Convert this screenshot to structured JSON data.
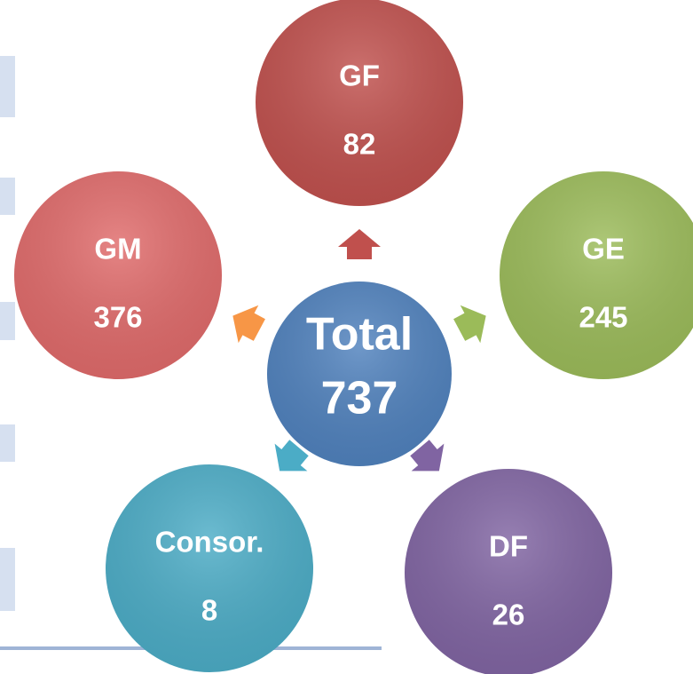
{
  "center": {
    "label": "Total",
    "value": 737
  },
  "nodes": [
    {
      "label": "GF",
      "value": 82
    },
    {
      "label": "GE",
      "value": 245
    },
    {
      "label": "DF",
      "value": 26
    },
    {
      "label": "Consor.",
      "value": 8
    },
    {
      "label": "GM",
      "value": 376
    }
  ]
}
